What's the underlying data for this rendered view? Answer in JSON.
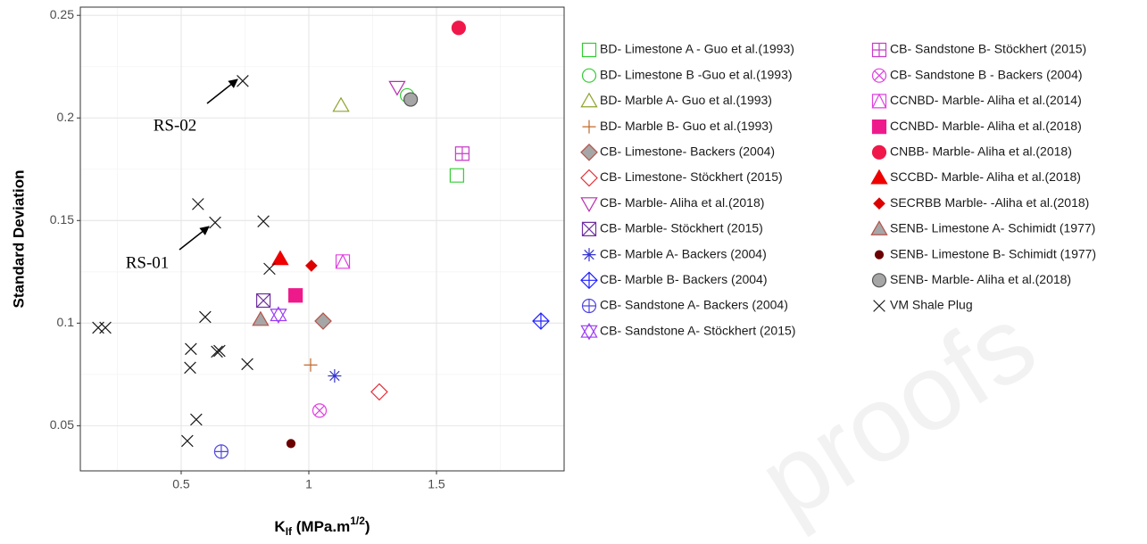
{
  "chart_data": {
    "type": "scatter",
    "ylabel": "Standard Deviation",
    "xlabel": {
      "main": "K",
      "sub": "If",
      "rest": " (MPa.m",
      "sup": "1/2",
      "end": ")"
    },
    "xlim": [
      0.105,
      2.0
    ],
    "xticks": [
      0.5,
      1.0,
      1.5
    ],
    "ylim": [
      0.028,
      0.254
    ],
    "yticks": [
      0.05,
      0.1,
      0.15,
      0.2,
      0.25
    ],
    "grid": true,
    "annotations": [
      "RS-02",
      "RS-01"
    ],
    "watermark": "proofs",
    "series": [
      {
        "name": "BD- Limestone A - Guo et al.(1993)",
        "marker": "square",
        "color": "#33cc33",
        "x": [
          1.58
        ],
        "values": [
          0.172
        ]
      },
      {
        "name": "BD- Limestone B -Guo et al.(1993)",
        "marker": "circle",
        "color": "#33cc33",
        "x": [
          1.385
        ],
        "values": [
          0.211
        ]
      },
      {
        "name": "BD- Marble A- Guo et al.(1993)",
        "marker": "triangle",
        "color": "#8fa32b",
        "x": [
          1.126
        ],
        "values": [
          0.206
        ]
      },
      {
        "name": "BD- Marble B- Guo et al.(1993)",
        "marker": "plus",
        "color": "#c0682a",
        "x": [
          1.007
        ],
        "values": [
          0.0796
        ]
      },
      {
        "name": "CB- Limestone- Backers (2004)",
        "marker": "diamond",
        "color": "#b5524a",
        "fill": "#a6a6a6",
        "x": [
          1.056
        ],
        "values": [
          0.101
        ]
      },
      {
        "name": "CB- Limestone- Stöckhert (2015)",
        "marker": "diamond",
        "color": "#e0303a",
        "x": [
          1.276
        ],
        "values": [
          0.0665
        ]
      },
      {
        "name": "CB- Marble- Aliha et al.(2018)",
        "marker": "triangle-down",
        "color": "#b830b0",
        "x": [
          1.346
        ],
        "values": [
          0.215
        ]
      },
      {
        "name": "CB- Marble- Stöckhert (2015)",
        "marker": "square-x",
        "color": "#7030a0",
        "x": [
          0.822
        ],
        "values": [
          0.111
        ]
      },
      {
        "name": "CB- Marble A- Backers (2004)",
        "marker": "asterisk",
        "color": "#3535d0",
        "x": [
          1.101
        ],
        "values": [
          0.0743
        ]
      },
      {
        "name": "CB- Marble B- Backers (2004)",
        "marker": "diamond-plus",
        "color": "#2222ff",
        "x": [
          1.909
        ],
        "values": [
          0.101
        ]
      },
      {
        "name": "CB- Sandstone A- Backers (2004)",
        "marker": "circle-plus",
        "color": "#5046e0",
        "x": [
          0.657
        ],
        "values": [
          0.0374
        ]
      },
      {
        "name": "CB- Sandstone A- Stöckhert (2015)",
        "marker": "star",
        "color": "#9b3cf5",
        "x": [
          0.881
        ],
        "values": [
          0.104
        ]
      },
      {
        "name": "CB- Sandstone B- Stöckhert (2015)",
        "marker": "square-plus",
        "color": "#c83cc8",
        "x": [
          1.601
        ],
        "values": [
          0.1826
        ]
      },
      {
        "name": "CB- Sandstone B - Backers (2004)",
        "marker": "circle-x",
        "color": "#e040e0",
        "x": [
          1.042
        ],
        "values": [
          0.0574
        ]
      },
      {
        "name": "CCNBD- Marble- Aliha et al.(2014)",
        "marker": "square-triangle",
        "color": "#e040e0",
        "x": [
          1.133
        ],
        "values": [
          0.13
        ]
      },
      {
        "name": "CCNBD- Marble- Aliha et al.(2018)",
        "marker": "square",
        "color": "#ee1a8c",
        "fill": "#ee1a8c",
        "x": [
          0.948
        ],
        "values": [
          0.1135
        ]
      },
      {
        "name": "CNBB- Marble- Aliha et al.(2018)",
        "marker": "circle",
        "color": "#f0184a",
        "fill": "#f0184a",
        "x": [
          1.587
        ],
        "values": [
          0.2439
        ]
      },
      {
        "name": "SCCBD- Marble- Aliha et al.(2018)",
        "marker": "triangle",
        "color": "#ee0000",
        "fill": "#ee0000",
        "x": [
          0.888
        ],
        "values": [
          0.1313
        ]
      },
      {
        "name": "SECRBB Marble- -Aliha et al.(2018)",
        "marker": "diamond-small",
        "color": "#dd0000",
        "fill": "#dd0000",
        "x": [
          1.01
        ],
        "values": [
          0.128
        ]
      },
      {
        "name": "SENB- Limestone A- Schimidt (1977)",
        "marker": "triangle",
        "color": "#b5524a",
        "fill": "#a6a6a6",
        "x": [
          0.811
        ],
        "values": [
          0.1017
        ]
      },
      {
        "name": "SENB- Limestone B- Schimidt (1977)",
        "marker": "dot",
        "color": "#6b0000",
        "fill": "#6b0000",
        "x": [
          0.93
        ],
        "values": [
          0.0413
        ]
      },
      {
        "name": "SENB- Marble- Aliha et al.(2018)",
        "marker": "circle",
        "color": "#555555",
        "fill": "#a6a6a6",
        "x": [
          1.399
        ],
        "values": [
          0.209
        ]
      },
      {
        "name": "VM Shale Plug",
        "marker": "x",
        "color": "#1a1a1a",
        "x": [
          0.741,
          0.566,
          0.633,
          0.822,
          0.846,
          0.594,
          0.175,
          0.203,
          0.538,
          0.64,
          0.65,
          0.535,
          0.759,
          0.559,
          0.524
        ],
        "values": [
          0.218,
          0.158,
          0.149,
          0.1496,
          0.1265,
          0.103,
          0.0978,
          0.0978,
          0.0874,
          0.0861,
          0.0865,
          0.0783,
          0.08,
          0.053,
          0.0426
        ]
      }
    ]
  }
}
